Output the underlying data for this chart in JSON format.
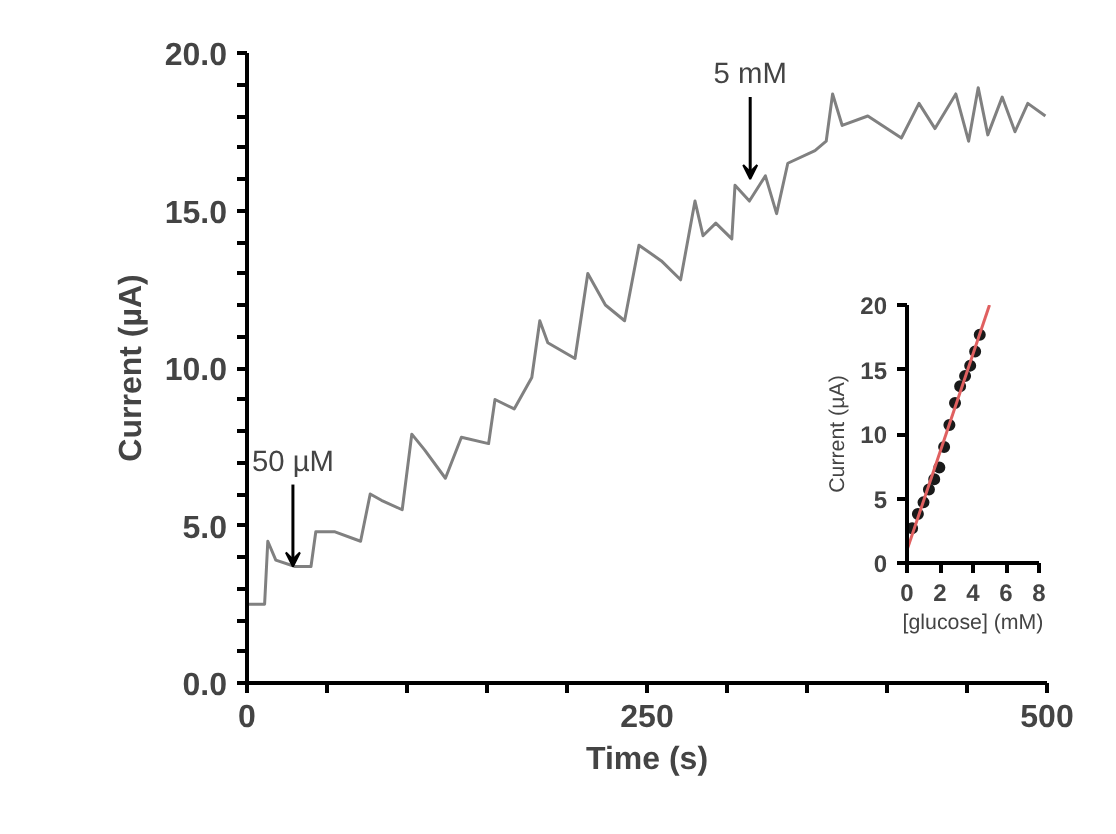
{
  "chart_data": [
    {
      "type": "line",
      "xlabel": "Time (s)",
      "ylabel": "Current (µA)",
      "color": "#808080",
      "grid": false,
      "marker": "none",
      "line_style": "solid",
      "xlim": [
        0,
        500
      ],
      "xticks": [
        0,
        {
          "value": 50,
          "label": null
        },
        {
          "value": 100,
          "label": null
        },
        {
          "value": 150,
          "label": null
        },
        {
          "value": 200,
          "label": null
        },
        250,
        {
          "value": 300,
          "label": null
        },
        {
          "value": 350,
          "label": null
        },
        {
          "value": 400,
          "label": null
        },
        {
          "value": 450,
          "label": null
        },
        500
      ],
      "ylim": [
        0,
        20
      ],
      "yticks": [
        {
          "value": 0,
          "label": "0.0"
        },
        {
          "value": 1,
          "label": null
        },
        {
          "value": 2,
          "label": null
        },
        {
          "value": 3,
          "label": null
        },
        {
          "value": 4,
          "label": null
        },
        {
          "value": 5,
          "label": "5.0"
        },
        {
          "value": 6,
          "label": null
        },
        {
          "value": 7,
          "label": null
        },
        {
          "value": 8,
          "label": null
        },
        {
          "value": 9,
          "label": null
        },
        {
          "value": 10,
          "label": "10.0"
        },
        {
          "value": 11,
          "label": null
        },
        {
          "value": 12,
          "label": null
        },
        {
          "value": 13,
          "label": null
        },
        {
          "value": 14,
          "label": null
        },
        {
          "value": 15,
          "label": "15.0"
        },
        {
          "value": 16,
          "label": null
        },
        {
          "value": 17,
          "label": null
        },
        {
          "value": 18,
          "label": null
        },
        {
          "value": 19,
          "label": null
        },
        {
          "value": 20,
          "label": "20.0"
        }
      ],
      "x": [
        0,
        11,
        13,
        18,
        30,
        40,
        43,
        55,
        71,
        77,
        84,
        97,
        103,
        111,
        124,
        134,
        151,
        155,
        167,
        178,
        183,
        188,
        205,
        213,
        224,
        236,
        245,
        259,
        271,
        280,
        285,
        293,
        303,
        305,
        314,
        324,
        331,
        338,
        355,
        362,
        366,
        372,
        388,
        409,
        420,
        430,
        443,
        451,
        457,
        463,
        472,
        480,
        488,
        499
      ],
      "values": [
        2.5,
        2.5,
        4.5,
        3.9,
        3.7,
        3.7,
        4.8,
        4.8,
        4.5,
        6.0,
        5.8,
        5.5,
        7.9,
        7.4,
        6.5,
        7.8,
        7.6,
        9.0,
        8.7,
        9.7,
        11.5,
        10.8,
        10.3,
        13.0,
        12.0,
        11.5,
        13.9,
        13.4,
        12.8,
        15.3,
        14.2,
        14.6,
        14.1,
        15.8,
        15.3,
        16.1,
        14.9,
        16.5,
        16.9,
        17.2,
        18.7,
        17.7,
        18.0,
        17.3,
        18.4,
        17.6,
        18.7,
        17.2,
        18.9,
        17.4,
        18.6,
        17.5,
        18.4,
        18.0
      ],
      "annotations": [
        {
          "text": "50 µM",
          "x": 28.7,
          "y": 3.7
        },
        {
          "text": "5 mM",
          "x": 314.5,
          "y": 16.0
        }
      ]
    },
    {
      "type": "scatter",
      "xlabel": "[glucose] (mM)",
      "ylabel": "Current (µA)",
      "grid": false,
      "marker": "circle",
      "xlim": [
        0,
        8
      ],
      "xticks": [
        0,
        2,
        4,
        6,
        8
      ],
      "ylim": [
        0,
        20
      ],
      "yticks": [
        0,
        5,
        10,
        15,
        20
      ],
      "series": [
        {
          "type": "scatter",
          "color": "#1a1a1a",
          "x": [
            0.31,
            0.66,
            1.0,
            1.33,
            1.65,
            1.96,
            2.25,
            2.57,
            2.91,
            3.22,
            3.52,
            3.83,
            4.13,
            4.41
          ],
          "values": [
            2.7,
            3.8,
            4.7,
            5.7,
            6.5,
            7.4,
            9.0,
            10.7,
            12.4,
            13.7,
            14.5,
            15.3,
            16.4,
            17.7
          ]
        },
        {
          "type": "line",
          "marker": "none",
          "color": "#e06060",
          "x": [
            0,
            5
          ],
          "values": [
            1,
            20
          ]
        }
      ]
    }
  ]
}
